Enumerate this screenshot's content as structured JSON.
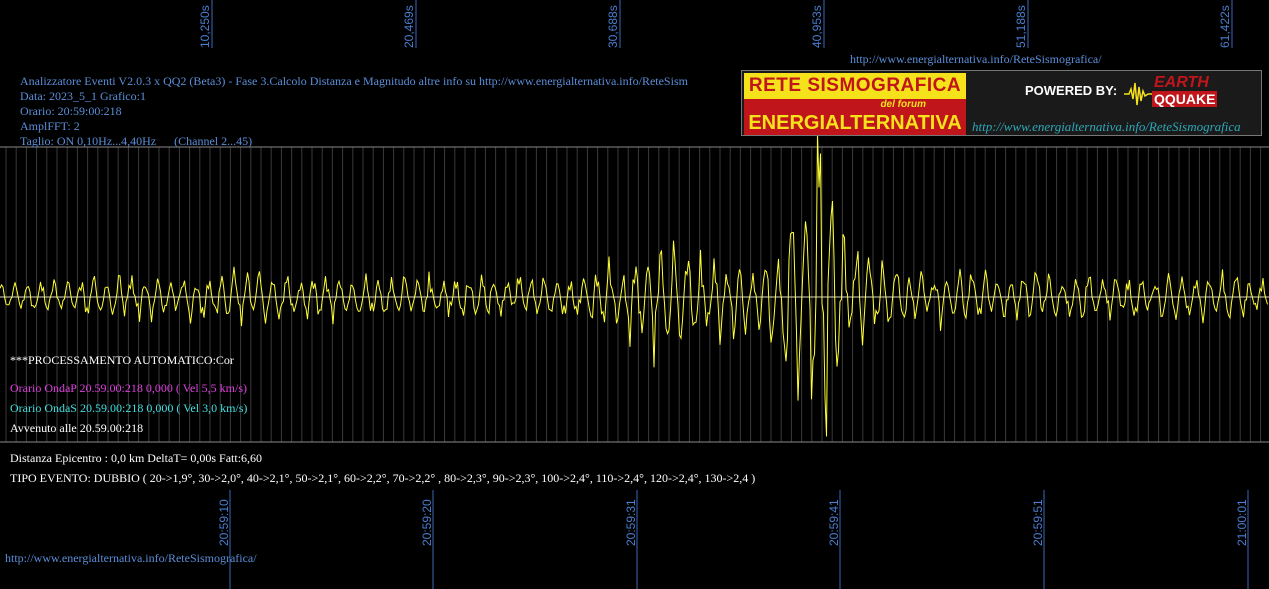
{
  "header": {
    "line1": "Analizzatore Eventi V2.0.3 x QQ2 (Beta3) - Fase 3.Calcolo Distanza e Magnitudo altre info su http://www.energialternativa.info/ReteSism",
    "line2": "Data: 2023_5_1 Grafico:1",
    "line3": "Orario: 20:59:00:218",
    "line4": "AmplFFT: 2",
    "line5": "Taglio: ON 0,10Hz...4,40Hz      (Channel 2...45)"
  },
  "top_url": "http://www.energialternativa.info/ReteSismografica/",
  "bottom_url": "http://www.energialternativa.info/ReteSismografica/",
  "logo": {
    "title": "RETE SISMOGRAFICA",
    "subtitle": "del forum",
    "name": "ENERGIALTERNATIVA",
    "powered": "POWERED BY:",
    "eq_top": "EARTH",
    "eq_bottom": "QQUAKE",
    "url": "http://www.energialternativa.info/ReteSismografica"
  },
  "info": {
    "processing": "***PROCESSAMENTO AUTOMATICO:Cor",
    "onda_p": "Orario OndaP 20.59.00:218  0,000 ( Vel 5,5 km/s)",
    "onda_s": "Orario OndaS 20.59.00:218  0,000 ( Vel 3,0 km/s)",
    "avvenuto": "Avvenuto alle 20.59.00:218",
    "distanza": "Distanza Epicentro : 0,0 km DeltaT= 0,00s  Fatt:6,60",
    "tipo": "TIPO EVENTO: DUBBIO ( 20->1,9°, 30->2,0°, 40->2,1°, 50->2,1°, 60->2,2°, 70->2,2° , 80->2,3°, 90->2,3°, 100->2,4°, 110->2,4°, 120->2,4°, 130->2,4 )"
  },
  "colors": {
    "background": "#000000",
    "trace": "#ffff33",
    "grid": "#555555",
    "axis_text": "#4a7fd0",
    "onda_p": "#e040e0",
    "onda_s": "#40e0e0"
  },
  "chart_data": {
    "type": "line",
    "title": "",
    "xlabel": "",
    "ylabel": "",
    "grid": true,
    "x_ticks_top": [
      "10,250s",
      "20,469s",
      "30,688s",
      "40,953s",
      "51,188s",
      "61,422s"
    ],
    "x_ticks_bottom": [
      "20:59:10",
      "20:59:20",
      "20:59:31",
      "20:59:41",
      "20:59:51",
      "21:00:01"
    ],
    "xlim": [
      0,
      62
    ],
    "series": [
      {
        "color": "#ffff33",
        "x": [
          0,
          4,
          8,
          12,
          16,
          20,
          24,
          28,
          32,
          36,
          38,
          39,
          40,
          41,
          42,
          44,
          48,
          52,
          56,
          60,
          62
        ],
        "y": [
          0.2,
          0.25,
          0.3,
          0.35,
          0.3,
          0.3,
          0.3,
          0.3,
          0.7,
          0.5,
          0.6,
          1.4,
          2.0,
          1.3,
          0.6,
          0.35,
          0.35,
          0.3,
          0.3,
          0.3,
          0.25
        ]
      }
    ]
  }
}
